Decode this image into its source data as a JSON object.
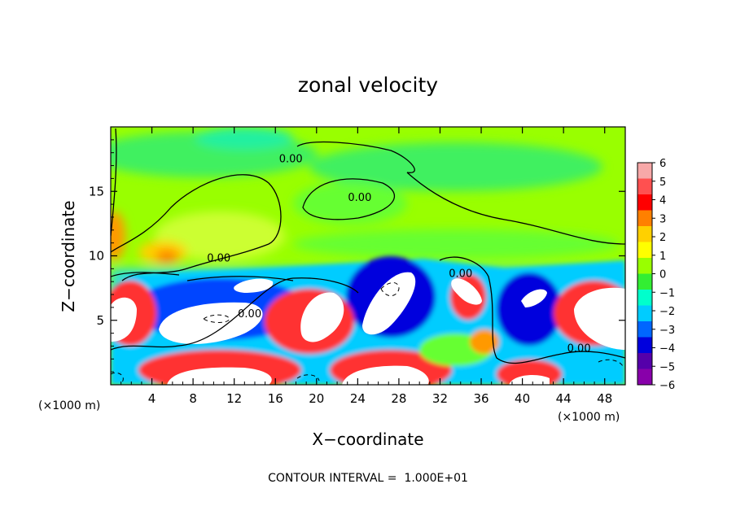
{
  "chart_data": {
    "type": "heatmap",
    "title": "zonal velocity",
    "xlabel": "X−coordinate",
    "ylabel": "Z−coordinate",
    "x_unit": "(×1000 m)",
    "y_unit": "(×1000 m)",
    "xlim": [
      0,
      50
    ],
    "ylim": [
      0,
      20
    ],
    "x_ticks": [
      4,
      8,
      12,
      16,
      20,
      24,
      28,
      32,
      36,
      40,
      44,
      48
    ],
    "y_ticks": [
      5,
      10,
      15
    ],
    "colorbar": {
      "levels": [
        6,
        5,
        4,
        3,
        2,
        1,
        0,
        -1,
        -2,
        -3,
        -4,
        -5,
        -6
      ],
      "level_labels": [
        "6",
        "5",
        "4",
        "3",
        "2",
        "1",
        "0",
        "−1",
        "−2",
        "−3",
        "−4",
        "−5",
        "−6"
      ],
      "colors": [
        "#f7a8a8",
        "#ff5050",
        "#ff0000",
        "#ff8000",
        "#ffd000",
        "#ffff00",
        "#99ff00",
        "#33ee33",
        "#00ffcc",
        "#00ccff",
        "#0066ff",
        "#0000dd",
        "#5500aa",
        "#8800aa"
      ]
    },
    "contour_labels": [
      {
        "text": "0.00",
        "x": 17.5,
        "y": 17.5
      },
      {
        "text": "0.00",
        "x": 24.2,
        "y": 14.5
      },
      {
        "text": "0.00",
        "x": 10.5,
        "y": 9.8
      },
      {
        "text": "0.00",
        "x": 13.5,
        "y": 5.5
      },
      {
        "text": "0.00",
        "x": 34.0,
        "y": 8.6
      },
      {
        "text": "0.00",
        "x": 45.5,
        "y": 2.8
      }
    ],
    "contour_interval_label": "CONTOUR INTERVAL =  1.000E+01",
    "grid": false,
    "legend": "right"
  }
}
